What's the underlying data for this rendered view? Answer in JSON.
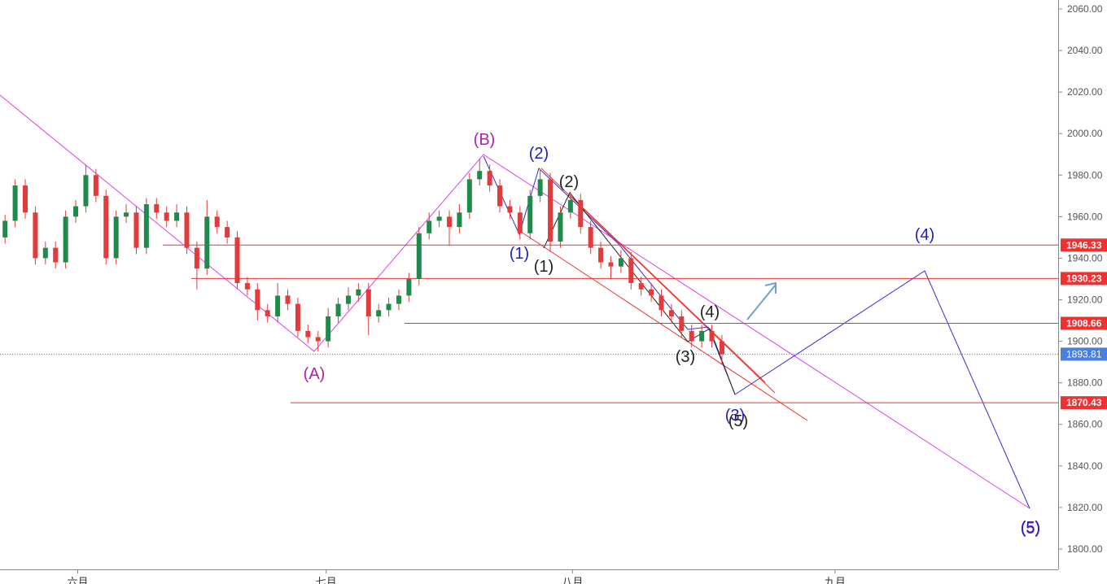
{
  "chart_data": {
    "type": "candlestick",
    "candles": [
      [
        1950,
        1961,
        1947,
        1958
      ],
      [
        1958,
        1978,
        1955,
        1975
      ],
      [
        1975,
        1978,
        1959,
        1962
      ],
      [
        1962,
        1965,
        1937,
        1940
      ],
      [
        1940,
        1948,
        1937,
        1945
      ],
      [
        1945,
        1948,
        1935,
        1938
      ],
      [
        1938,
        1963,
        1935,
        1960
      ],
      [
        1960,
        1968,
        1957,
        1965
      ],
      [
        1965,
        1985,
        1962,
        1980
      ],
      [
        1980,
        1983,
        1967,
        1970
      ],
      [
        1970,
        1973,
        1937,
        1940
      ],
      [
        1940,
        1963,
        1937,
        1960
      ],
      [
        1960,
        1966,
        1957,
        1962
      ],
      [
        1962,
        1965,
        1942,
        1945
      ],
      [
        1945,
        1969,
        1942,
        1966
      ],
      [
        1966,
        1969,
        1959,
        1962
      ],
      [
        1962,
        1965,
        1955,
        1958
      ],
      [
        1958,
        1966,
        1955,
        1962
      ],
      [
        1962,
        1965,
        1942,
        1945
      ],
      [
        1945,
        1948,
        1925,
        1935
      ],
      [
        1935,
        1968,
        1932,
        1960
      ],
      [
        1960,
        1963,
        1952,
        1955
      ],
      [
        1955,
        1958,
        1947,
        1950
      ],
      [
        1950,
        1953,
        1925,
        1928
      ],
      [
        1928,
        1931,
        1922,
        1925
      ],
      [
        1925,
        1928,
        1910,
        1915
      ],
      [
        1915,
        1918,
        1909,
        1912
      ],
      [
        1912,
        1928,
        1909,
        1922
      ],
      [
        1922,
        1925,
        1915,
        1918
      ],
      [
        1918,
        1921,
        1902,
        1905
      ],
      [
        1905,
        1908,
        1899,
        1902
      ],
      [
        1902,
        1905,
        1895,
        1900
      ],
      [
        1900,
        1916,
        1897,
        1912
      ],
      [
        1912,
        1921,
        1909,
        1918
      ],
      [
        1918,
        1926,
        1915,
        1922
      ],
      [
        1922,
        1928,
        1919,
        1925
      ],
      [
        1925,
        1928,
        1903,
        1912
      ],
      [
        1912,
        1918,
        1909,
        1915
      ],
      [
        1915,
        1921,
        1912,
        1918
      ],
      [
        1918,
        1925,
        1915,
        1922
      ],
      [
        1922,
        1933,
        1919,
        1930
      ],
      [
        1930,
        1955,
        1927,
        1952
      ],
      [
        1952,
        1962,
        1949,
        1958
      ],
      [
        1958,
        1963,
        1955,
        1960
      ],
      [
        1960,
        1963,
        1946,
        1955
      ],
      [
        1955,
        1966,
        1952,
        1962
      ],
      [
        1962,
        1981,
        1959,
        1978
      ],
      [
        1978,
        1988,
        1975,
        1982
      ],
      [
        1982,
        1985,
        1972,
        1975
      ],
      [
        1975,
        1978,
        1962,
        1965
      ],
      [
        1965,
        1968,
        1959,
        1962
      ],
      [
        1962,
        1965,
        1949,
        1952
      ],
      [
        1952,
        1973,
        1949,
        1970
      ],
      [
        1970,
        1983,
        1967,
        1978
      ],
      [
        1978,
        1981,
        1943,
        1948
      ],
      [
        1948,
        1965,
        1945,
        1962
      ],
      [
        1962,
        1972,
        1959,
        1968
      ],
      [
        1968,
        1971,
        1952,
        1955
      ],
      [
        1955,
        1958,
        1942,
        1945
      ],
      [
        1945,
        1948,
        1935,
        1938
      ],
      [
        1938,
        1941,
        1930,
        1936
      ],
      [
        1936,
        1944,
        1933,
        1940
      ],
      [
        1940,
        1943,
        1925,
        1928
      ],
      [
        1928,
        1931,
        1922,
        1925
      ],
      [
        1925,
        1928,
        1919,
        1922
      ],
      [
        1922,
        1925,
        1912,
        1915
      ],
      [
        1915,
        1918,
        1909,
        1912
      ],
      [
        1912,
        1915,
        1902,
        1905
      ],
      [
        1905,
        1908,
        1897,
        1900
      ],
      [
        1900,
        1908,
        1897,
        1905
      ],
      [
        1905,
        1908,
        1897,
        1900
      ],
      [
        1900,
        1903,
        1889,
        1893.81
      ]
    ],
    "up_color": "#1f8a4c",
    "down_color": "#e23b3b",
    "ylim": [
      1790.2,
      2064.3
    ],
    "yticks": [
      {
        "value": 1800,
        "label": "1800.00"
      },
      {
        "value": 1820,
        "label": "1820.00"
      },
      {
        "value": 1840,
        "label": "1840.00"
      },
      {
        "value": 1860,
        "label": "1860.00"
      },
      {
        "value": 1880,
        "label": "1880.00"
      },
      {
        "value": 1900,
        "label": "1900.00"
      },
      {
        "value": 1920,
        "label": "1920.00"
      },
      {
        "value": 1940,
        "label": "1940.00"
      },
      {
        "value": 1960,
        "label": "1960.00"
      },
      {
        "value": 1980,
        "label": "1980.00"
      },
      {
        "value": 2000,
        "label": "2000.00"
      },
      {
        "value": 2020,
        "label": "2020.00"
      },
      {
        "value": 2040,
        "label": "2040.00"
      },
      {
        "value": 2060,
        "label": "2060.00"
      }
    ],
    "xlim": [
      -0.5,
      104.3
    ],
    "xticks": [
      {
        "value": 7.2,
        "label": "六月"
      },
      {
        "value": 31.8,
        "label": "七月"
      },
      {
        "value": 56.2,
        "label": "八月"
      },
      {
        "value": 82.2,
        "label": "九月"
      }
    ],
    "levels": [
      1946.33,
      1930.23,
      1908.66,
      1870.43
    ],
    "level_color": "#f23030",
    "last_price": 1893.81,
    "last_color": "#4a7fe0",
    "annotations": [
      {
        "text": "(B)",
        "color": "#b020b0"
      },
      {
        "text": "(A)",
        "color": "#b020b0"
      },
      {
        "text": "(2)",
        "color": "#2020c0"
      },
      {
        "text": "(1)",
        "color": "#2020c0"
      },
      {
        "text": "(2)",
        "color": "#222222"
      },
      {
        "text": "(1)",
        "color": "#222222"
      },
      {
        "text": "(4)",
        "color": "#222222"
      },
      {
        "text": "(3)",
        "color": "#222222"
      },
      {
        "text": "(3)",
        "color": "#2020c0"
      },
      {
        "text": "(5)",
        "color": "#222222"
      },
      {
        "text": "(4)",
        "color": "#2020c0"
      },
      {
        "text": "(5)",
        "color": "#b020b0"
      },
      {
        "text": "(5)",
        "color": "#2020c0"
      }
    ]
  }
}
